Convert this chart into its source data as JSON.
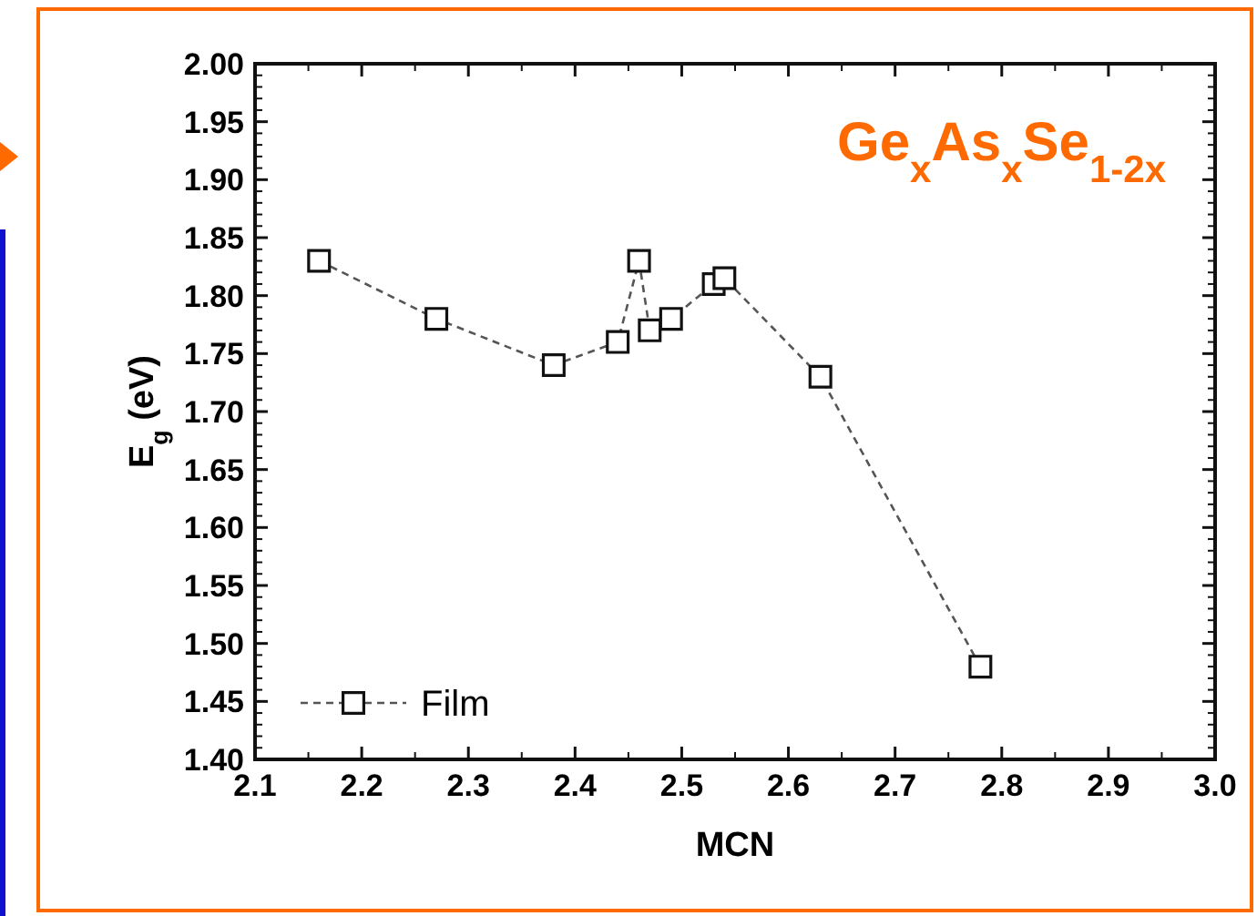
{
  "chart_data": {
    "type": "line",
    "title": "Ge$_{x}$As$_{x}$Se$_{1-2x}$",
    "xlabel": "MCN",
    "ylabel": "E$_{g}$ (eV)",
    "series": [
      {
        "name": "Film",
        "color": "#555555",
        "x": [
          2.16,
          2.27,
          2.38,
          2.44,
          2.46,
          2.47,
          2.49,
          2.53,
          2.54,
          2.63,
          2.78
        ],
        "values": [
          1.83,
          1.78,
          1.74,
          1.76,
          1.83,
          1.77,
          1.78,
          1.81,
          1.815,
          1.73,
          1.48
        ]
      }
    ],
    "xlim": [
      2.1,
      3.0
    ],
    "xticks": [
      2.1,
      2.2,
      2.3,
      2.4,
      2.5,
      2.6,
      2.7,
      2.8,
      2.9,
      {
        "value": 3.0,
        "label": "3.0"
      }
    ],
    "ylim": [
      1.4,
      2.0
    ],
    "yticks": [
      {
        "value": 1.4,
        "label": "1.40"
      },
      {
        "value": 1.45,
        "label": "1.45"
      },
      {
        "value": 1.5,
        "label": "1.50"
      },
      {
        "value": 1.55,
        "label": "1.55"
      },
      {
        "value": 1.6,
        "label": "1.60"
      },
      {
        "value": 1.65,
        "label": "1.65"
      },
      {
        "value": 1.7,
        "label": "1.70"
      },
      {
        "value": 1.75,
        "label": "1.75"
      },
      {
        "value": 1.8,
        "label": "1.80"
      },
      {
        "value": 1.85,
        "label": "1.85"
      },
      {
        "value": 1.9,
        "label": "1.90"
      },
      {
        "value": 1.95,
        "label": "1.95"
      },
      {
        "value": 2.0,
        "label": "2.00"
      }
    ],
    "marker": "square",
    "line_style": "dashed",
    "legend": "bottom left",
    "grid": false
  }
}
